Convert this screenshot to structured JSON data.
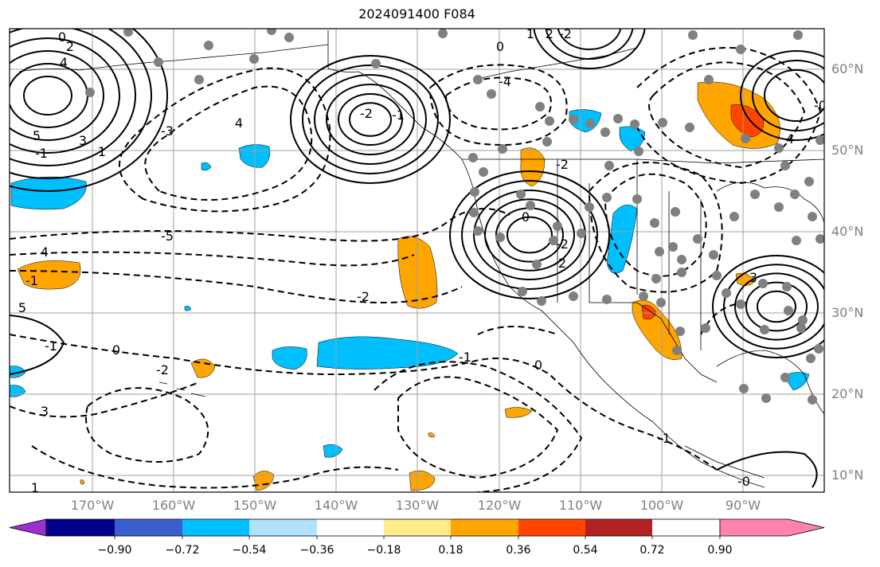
{
  "title": "2024091400 F084",
  "lat_labels": [
    "60°N",
    "50°N",
    "40°N",
    "30°N",
    "20°N",
    "10°N"
  ],
  "lon_labels": [
    "170°W",
    "160°W",
    "150°W",
    "140°W",
    "130°W",
    "120°W",
    "110°W",
    "100°W",
    "90°W"
  ],
  "colorbar": {
    "colors": [
      "#9b30d0",
      "#00008b",
      "#3a5fcd",
      "#00bfff",
      "#b0e2ff",
      "#ffffff",
      "#ffec8b",
      "#ffa500",
      "#ff4500",
      "#b22222",
      "#ff83aa"
    ],
    "ticks": [
      "−0.90",
      "−0.72",
      "−0.54",
      "−0.36",
      "−0.18",
      "0.18",
      "0.36",
      "0.54",
      "0.72",
      "0.90"
    ],
    "extend": "both"
  },
  "contour_labels": [
    "0",
    "2",
    "4",
    "-1",
    "3",
    "1",
    "5",
    "4",
    "-3",
    "-2",
    "-1",
    "0",
    "1",
    "2",
    "-2",
    "-4",
    "-5",
    "4",
    "-2",
    "-1",
    "0",
    "-2",
    "0",
    "-2",
    "2",
    "5",
    "4",
    "3",
    "-1",
    "0",
    "3",
    "1",
    "-1",
    "-0",
    "-2",
    "-1",
    "-0"
  ],
  "map": {
    "projection": "PlateCarree",
    "lon_range": [
      -180,
      -80
    ],
    "lat_range": [
      7,
      65
    ],
    "gridlines": true,
    "station_markers": "gray dots"
  }
}
